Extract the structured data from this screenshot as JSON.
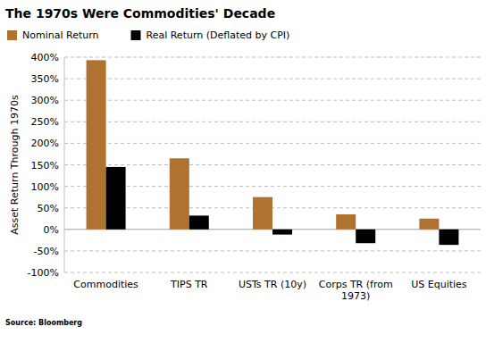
{
  "chart_data": {
    "type": "bar",
    "title": "The 1970s Were Commodities' Decade",
    "y_label": "Asset Return Through 1970s",
    "source": "Source: Bloomberg",
    "categories": [
      "Commodities",
      "TIPS TR",
      "USTs TR (10y)",
      "Corps TR (from 1973)",
      "US Equities"
    ],
    "series": [
      {
        "name": "Nominal Return",
        "color": "#b07231",
        "values": [
          393,
          165,
          75,
          35,
          25
        ]
      },
      {
        "name": "Real Return (Deflated by CPI)",
        "color": "#000000",
        "values": [
          145,
          32,
          -12,
          -32,
          -36
        ]
      }
    ],
    "ylim": [
      -100,
      400
    ],
    "yticks": [
      {
        "value": -100,
        "label": "-100%"
      },
      {
        "value": -50,
        "label": "-50%"
      },
      {
        "value": 0,
        "label": "0%"
      },
      {
        "value": 50,
        "label": "50%"
      },
      {
        "value": 100,
        "label": "100%"
      },
      {
        "value": 150,
        "label": "150%"
      },
      {
        "value": 200,
        "label": "200%"
      },
      {
        "value": 250,
        "label": "250%"
      },
      {
        "value": 300,
        "label": "300%"
      },
      {
        "value": 350,
        "label": "350%"
      },
      {
        "value": 400,
        "label": "400%"
      }
    ],
    "grid": true,
    "legend": "top-left"
  }
}
